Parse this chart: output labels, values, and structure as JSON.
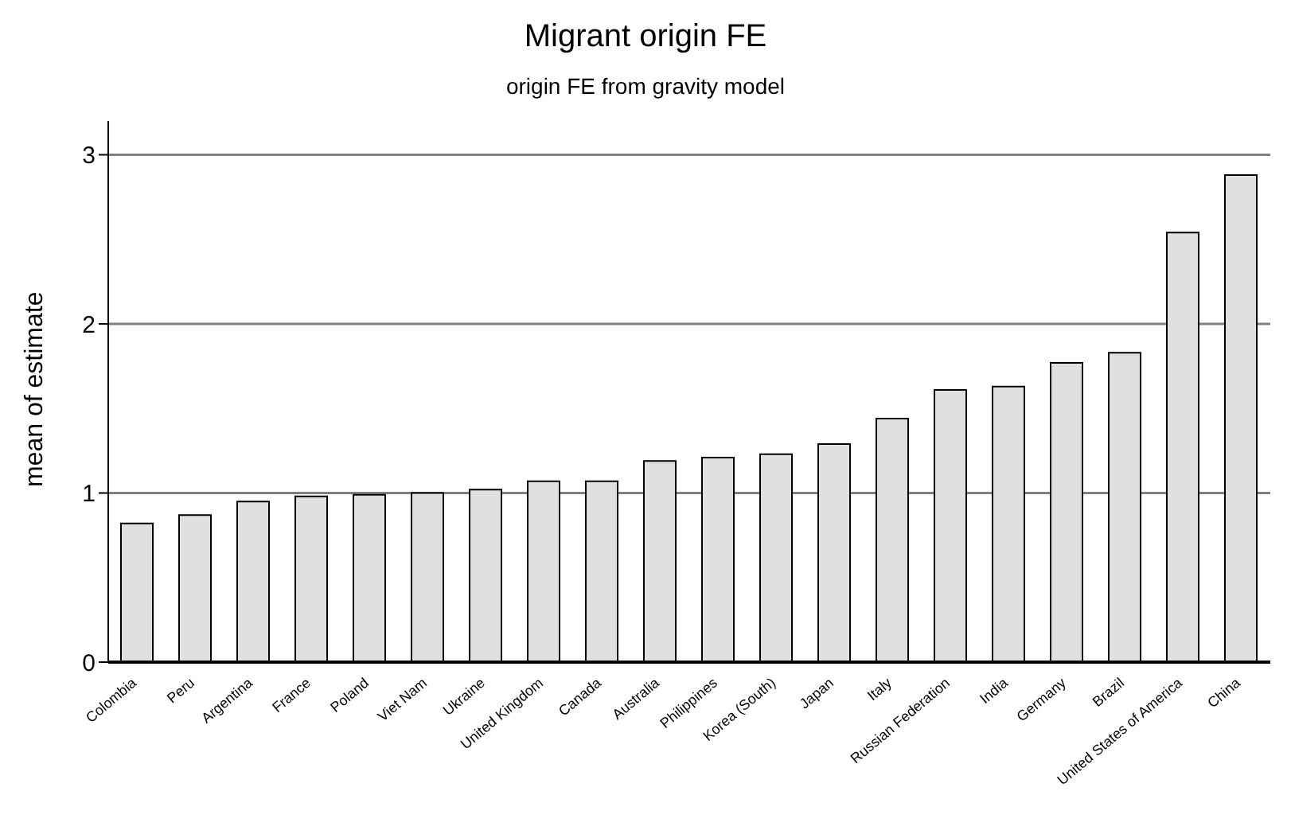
{
  "chart_data": {
    "type": "bar",
    "title": "Migrant origin FE",
    "subtitle": "origin FE from gravity model",
    "ylabel": "mean of estimate",
    "categories": [
      "Colombia",
      "Peru",
      "Argentina",
      "France",
      "Poland",
      "Viet Nam",
      "Ukraine",
      "United Kingdom",
      "Canada",
      "Australia",
      "Philippines",
      "Korea (South)",
      "Japan",
      "Italy",
      "Russian Federation",
      "India",
      "Germany",
      "Brazil",
      "United States of America",
      "China"
    ],
    "values": [
      0.82,
      0.87,
      0.95,
      0.98,
      0.99,
      1.0,
      1.02,
      1.07,
      1.07,
      1.19,
      1.21,
      1.23,
      1.29,
      1.44,
      1.61,
      1.63,
      1.77,
      1.83,
      2.54,
      2.88
    ],
    "color": "#e0e0e0",
    "ylim": [
      0,
      3.2
    ],
    "yticks": [
      0,
      1,
      2,
      3
    ],
    "grid": "y"
  }
}
